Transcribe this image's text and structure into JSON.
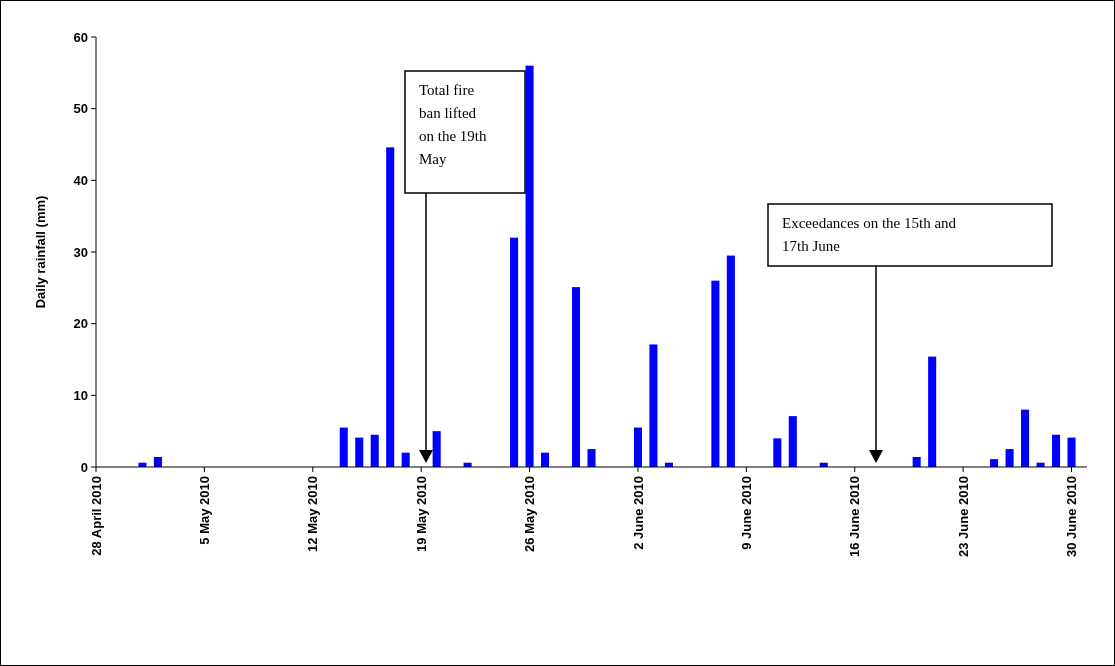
{
  "chart_data": {
    "type": "bar",
    "ylabel": "Daily rainfall (mm)",
    "color": "#0000ff",
    "x": [
      "2010-05-01",
      "2010-05-02",
      "2010-05-14",
      "2010-05-15",
      "2010-05-16",
      "2010-05-17",
      "2010-05-18",
      "2010-05-20",
      "2010-05-22",
      "2010-05-25",
      "2010-05-26",
      "2010-05-27",
      "2010-05-29",
      "2010-05-30",
      "2010-06-02",
      "2010-06-03",
      "2010-06-04",
      "2010-06-07",
      "2010-06-08",
      "2010-06-11",
      "2010-06-12",
      "2010-06-14",
      "2010-06-20",
      "2010-06-21",
      "2010-06-25",
      "2010-06-26",
      "2010-06-27",
      "2010-06-28",
      "2010-06-29",
      "2010-06-30"
    ],
    "values": [
      0.6,
      1.4,
      5.5,
      4.1,
      4.5,
      44.6,
      2.0,
      5.0,
      0.6,
      32.0,
      56.0,
      2.0,
      25.1,
      2.5,
      5.5,
      17.1,
      0.6,
      26.0,
      29.5,
      4.0,
      7.1,
      0.6,
      1.4,
      15.4,
      1.1,
      2.5,
      8.0,
      0.6,
      4.5,
      4.1
    ],
    "xlim": [
      "2010-04-28",
      "2010-07-01"
    ],
    "xticks": [
      {
        "value": "2010-04-28",
        "label": "28 April 2010"
      },
      {
        "value": "2010-05-05",
        "label": "5 May 2010"
      },
      {
        "value": "2010-05-12",
        "label": "12 May 2010"
      },
      {
        "value": "2010-05-19",
        "label": "19 May 2010"
      },
      {
        "value": "2010-05-26",
        "label": "26 May 2010"
      },
      {
        "value": "2010-06-02",
        "label": "2 June 2010"
      },
      {
        "value": "2010-06-09",
        "label": "9 June 2010"
      },
      {
        "value": "2010-06-16",
        "label": "16 June 2010"
      },
      {
        "value": "2010-06-23",
        "label": "23 June 2010"
      },
      {
        "value": "2010-06-30",
        "label": "30 June 2010"
      }
    ],
    "ylim": [
      0,
      60
    ],
    "yticks": [
      0,
      10,
      20,
      30,
      40,
      50,
      60
    ],
    "grid": false,
    "annotations": [
      "Total fire ban lifted on the 19th May",
      "Exceedances on the 15th and 17th June"
    ]
  }
}
